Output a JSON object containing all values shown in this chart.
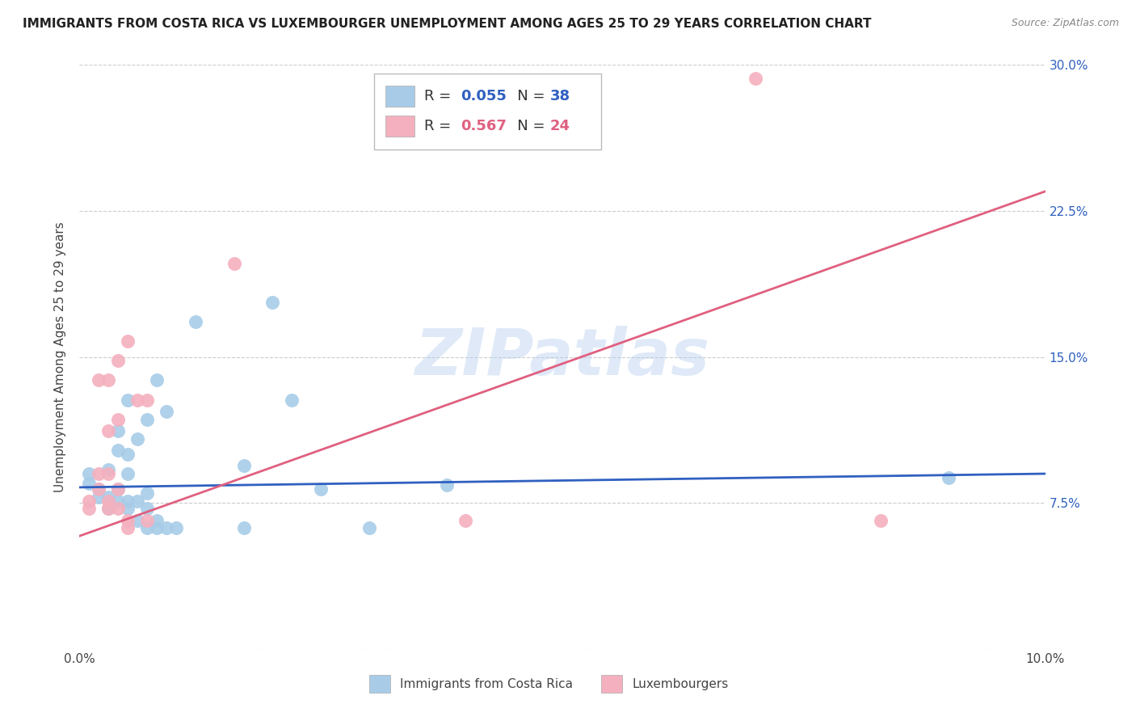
{
  "title": "IMMIGRANTS FROM COSTA RICA VS LUXEMBOURGER UNEMPLOYMENT AMONG AGES 25 TO 29 YEARS CORRELATION CHART",
  "source": "Source: ZipAtlas.com",
  "ylabel": "Unemployment Among Ages 25 to 29 years",
  "legend_label_blue": "Immigrants from Costa Rica",
  "legend_label_pink": "Luxembourgers",
  "legend_r_blue": "0.055",
  "legend_n_blue": "38",
  "legend_r_pink": "0.567",
  "legend_n_pink": "24",
  "watermark": "ZIPatlas",
  "xlim": [
    0.0,
    0.1
  ],
  "ylim": [
    0.0,
    0.3
  ],
  "xticks": [
    0.0,
    0.02,
    0.04,
    0.06,
    0.08,
    0.1
  ],
  "yticks": [
    0.0,
    0.075,
    0.15,
    0.225,
    0.3
  ],
  "xtick_labels": [
    "0.0%",
    "",
    "",
    "",
    "",
    "10.0%"
  ],
  "ytick_labels": [
    "",
    "7.5%",
    "15.0%",
    "22.5%",
    "30.0%"
  ],
  "blue_scatter_color": "#a8cce8",
  "pink_scatter_color": "#f4b0be",
  "blue_line_color": "#3060c0",
  "pink_line_color": "#e06080",
  "blue_scatter": [
    [
      0.001,
      0.085
    ],
    [
      0.001,
      0.09
    ],
    [
      0.002,
      0.082
    ],
    [
      0.002,
      0.078
    ],
    [
      0.003,
      0.092
    ],
    [
      0.003,
      0.078
    ],
    [
      0.003,
      0.072
    ],
    [
      0.004,
      0.112
    ],
    [
      0.004,
      0.102
    ],
    [
      0.004,
      0.082
    ],
    [
      0.004,
      0.076
    ],
    [
      0.005,
      0.128
    ],
    [
      0.005,
      0.1
    ],
    [
      0.005,
      0.09
    ],
    [
      0.005,
      0.076
    ],
    [
      0.005,
      0.072
    ],
    [
      0.006,
      0.108
    ],
    [
      0.006,
      0.076
    ],
    [
      0.006,
      0.066
    ],
    [
      0.007,
      0.118
    ],
    [
      0.007,
      0.08
    ],
    [
      0.007,
      0.072
    ],
    [
      0.007,
      0.062
    ],
    [
      0.008,
      0.138
    ],
    [
      0.008,
      0.066
    ],
    [
      0.008,
      0.062
    ],
    [
      0.009,
      0.122
    ],
    [
      0.009,
      0.062
    ],
    [
      0.01,
      0.062
    ],
    [
      0.012,
      0.168
    ],
    [
      0.017,
      0.094
    ],
    [
      0.017,
      0.062
    ],
    [
      0.02,
      0.178
    ],
    [
      0.022,
      0.128
    ],
    [
      0.025,
      0.082
    ],
    [
      0.03,
      0.062
    ],
    [
      0.038,
      0.084
    ],
    [
      0.09,
      0.088
    ]
  ],
  "pink_scatter": [
    [
      0.001,
      0.076
    ],
    [
      0.001,
      0.072
    ],
    [
      0.002,
      0.138
    ],
    [
      0.002,
      0.09
    ],
    [
      0.002,
      0.082
    ],
    [
      0.003,
      0.138
    ],
    [
      0.003,
      0.112
    ],
    [
      0.003,
      0.09
    ],
    [
      0.003,
      0.076
    ],
    [
      0.003,
      0.072
    ],
    [
      0.004,
      0.148
    ],
    [
      0.004,
      0.118
    ],
    [
      0.004,
      0.082
    ],
    [
      0.004,
      0.072
    ],
    [
      0.005,
      0.158
    ],
    [
      0.005,
      0.066
    ],
    [
      0.005,
      0.062
    ],
    [
      0.006,
      0.128
    ],
    [
      0.007,
      0.128
    ],
    [
      0.007,
      0.066
    ],
    [
      0.016,
      0.198
    ],
    [
      0.04,
      0.066
    ],
    [
      0.07,
      0.293
    ],
    [
      0.083,
      0.066
    ]
  ],
  "blue_line_x": [
    0.0,
    0.1
  ],
  "blue_line_y": [
    0.083,
    0.09
  ],
  "pink_line_x": [
    0.0,
    0.1
  ],
  "pink_line_y": [
    0.058,
    0.235
  ],
  "background_color": "#ffffff",
  "grid_color": "#cccccc",
  "title_fontsize": 11,
  "axis_label_fontsize": 11,
  "tick_fontsize": 11,
  "legend_fontsize": 13
}
